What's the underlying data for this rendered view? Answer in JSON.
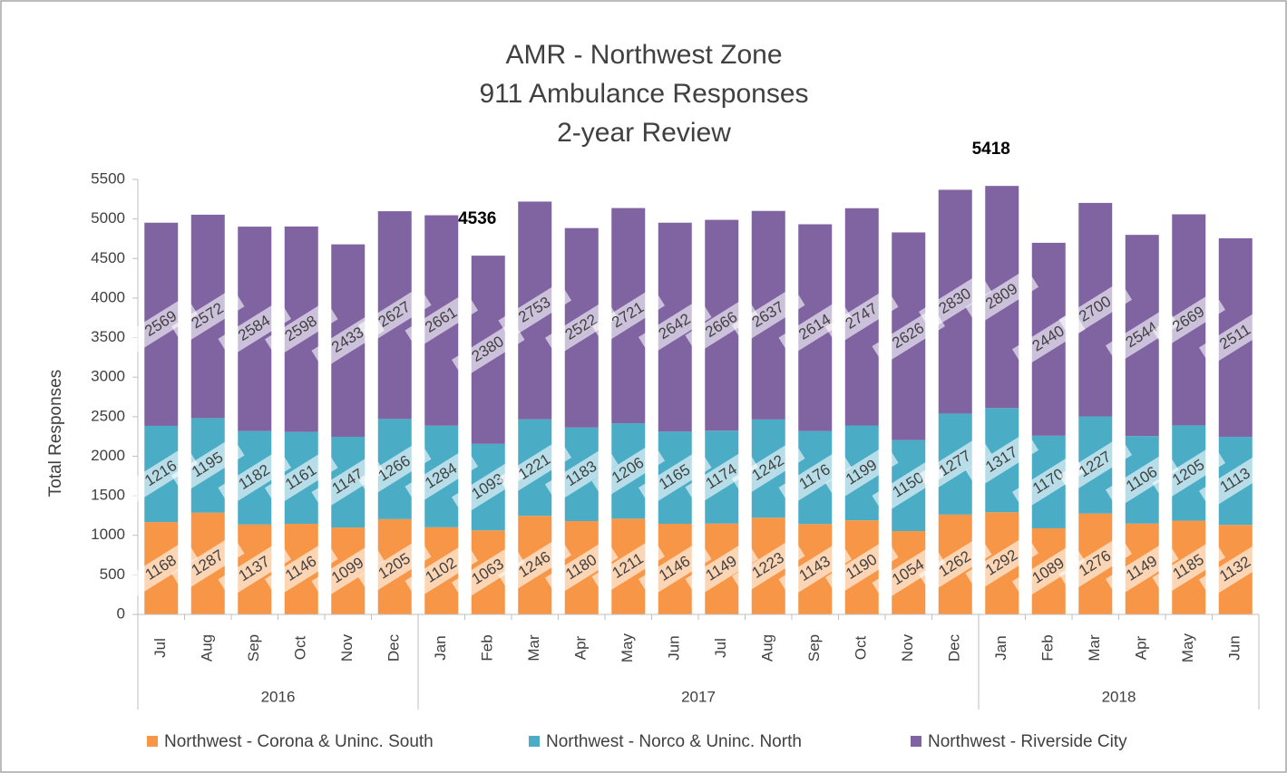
{
  "chart_data": {
    "type": "stacked_bar",
    "title": [
      "AMR - Northwest Zone",
      "911 Ambulance Responses",
      "2-year Review"
    ],
    "y_label": "Total Responses",
    "categories": [
      "Jul",
      "Aug",
      "Sep",
      "Oct",
      "Nov",
      "Dec",
      "Jan",
      "Feb",
      "Mar",
      "Apr",
      "May",
      "Jun",
      "Jul",
      "Aug",
      "Sep",
      "Oct",
      "Nov",
      "Dec",
      "Jan",
      "Feb",
      "Mar",
      "Apr",
      "May",
      "Jun"
    ],
    "years": [
      "2016",
      "2016",
      "2016",
      "2016",
      "2016",
      "2016",
      "2017",
      "2017",
      "2017",
      "2017",
      "2017",
      "2017",
      "2017",
      "2017",
      "2017",
      "2017",
      "2017",
      "2017",
      "2018",
      "2018",
      "2018",
      "2018",
      "2018",
      "2018"
    ],
    "series": [
      {
        "name": "Northwest - Corona & Uninc. South",
        "color": "#f79646",
        "values": [
          1168,
          1287,
          1137,
          1146,
          1099,
          1205,
          1102,
          1063,
          1246,
          1180,
          1211,
          1146,
          1149,
          1223,
          1143,
          1190,
          1054,
          1262,
          1292,
          1089,
          1276,
          1149,
          1185,
          1132
        ]
      },
      {
        "name": "Northwest - Norco & Uninc. North",
        "color": "#4bacc6",
        "values": [
          1216,
          1195,
          1182,
          1161,
          1147,
          1266,
          1284,
          1093,
          1221,
          1183,
          1206,
          1165,
          1174,
          1242,
          1176,
          1199,
          1150,
          1277,
          1317,
          1170,
          1227,
          1106,
          1205,
          1113
        ]
      },
      {
        "name": "Northwest - Riverside City",
        "color": "#8064a2",
        "values": [
          2569,
          2572,
          2584,
          2598,
          2433,
          2627,
          2661,
          2380,
          2753,
          2522,
          2721,
          2642,
          2666,
          2637,
          2614,
          2747,
          2626,
          2830,
          2809,
          2440,
          2700,
          2544,
          2669,
          2511
        ]
      }
    ],
    "annotations": [
      {
        "category": "Feb",
        "year": "2017",
        "value": 4536
      },
      {
        "category": "Jan",
        "year": "2018",
        "value": 5418
      }
    ],
    "ylim": [
      0,
      5500
    ],
    "yticks": [
      0,
      500,
      1000,
      1500,
      2000,
      2500,
      3000,
      3500,
      4000,
      4500,
      5000,
      5500
    ],
    "grid": false,
    "legend": "bottom"
  }
}
